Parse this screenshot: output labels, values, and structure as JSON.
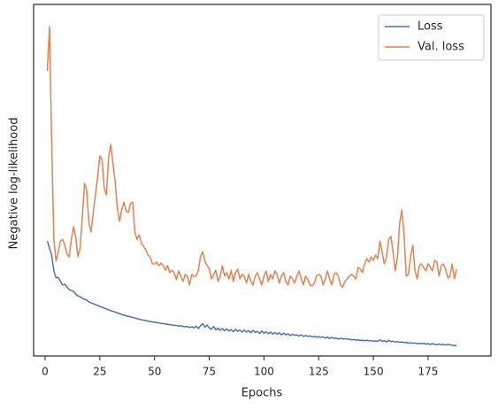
{
  "chart_data": {
    "type": "line",
    "xlabel": "Epochs",
    "ylabel": "Negative log-likelihood",
    "xlim": [
      -5.25,
      203.7
    ],
    "xticks": [
      0,
      25,
      50,
      75,
      100,
      125,
      150,
      175
    ],
    "ylim": [
      0,
      100
    ],
    "legend": "upper right",
    "x": [
      1,
      2,
      3,
      4,
      5,
      6,
      7,
      8,
      9,
      10,
      11,
      12,
      13,
      14,
      15,
      16,
      17,
      18,
      19,
      20,
      21,
      22,
      23,
      24,
      25,
      26,
      27,
      28,
      29,
      30,
      31,
      32,
      33,
      34,
      35,
      36,
      37,
      38,
      39,
      40,
      41,
      42,
      43,
      44,
      45,
      46,
      47,
      48,
      49,
      50,
      51,
      52,
      53,
      54,
      55,
      56,
      57,
      58,
      59,
      60,
      61,
      62,
      63,
      64,
      65,
      66,
      67,
      68,
      69,
      70,
      71,
      72,
      73,
      74,
      75,
      76,
      77,
      78,
      79,
      80,
      81,
      82,
      83,
      84,
      85,
      86,
      87,
      88,
      89,
      90,
      91,
      92,
      93,
      94,
      95,
      96,
      97,
      98,
      99,
      100,
      101,
      102,
      103,
      104,
      105,
      106,
      107,
      108,
      109,
      110,
      111,
      112,
      113,
      114,
      115,
      116,
      117,
      118,
      119,
      120,
      121,
      122,
      123,
      124,
      125,
      126,
      127,
      128,
      129,
      130,
      131,
      132,
      133,
      134,
      135,
      136,
      137,
      138,
      139,
      140,
      141,
      142,
      143,
      144,
      145,
      146,
      147,
      148,
      149,
      150,
      151,
      152,
      153,
      154,
      155,
      156,
      157,
      158,
      159,
      160,
      161,
      162,
      163,
      164,
      165,
      166,
      167,
      168,
      169,
      170,
      171,
      172,
      173,
      174,
      175,
      176,
      177,
      178,
      179,
      180,
      181,
      182,
      183,
      184,
      185,
      186,
      187,
      188
    ],
    "series": [
      {
        "name": "Loss",
        "color": "#4c72b0",
        "values": [
          32.7,
          30.7,
          28.7,
          24.2,
          22.2,
          22.4,
          21.2,
          20.2,
          20.4,
          19.6,
          18.9,
          18.6,
          18.4,
          17.6,
          17.1,
          16.9,
          16.4,
          16.1,
          15.9,
          15.4,
          15.1,
          14.9,
          14.6,
          14.4,
          14.1,
          13.9,
          13.6,
          13.4,
          13.1,
          12.9,
          12.7,
          12.5,
          12.2,
          12.1,
          11.8,
          11.6,
          11.5,
          11.3,
          11.1,
          11.0,
          10.8,
          10.6,
          10.5,
          10.3,
          10.2,
          10.1,
          9.9,
          9.8,
          9.7,
          9.6,
          9.5,
          9.4,
          9.3,
          9.2,
          9.1,
          9.0,
          8.9,
          8.8,
          8.7,
          8.7,
          8.5,
          8.6,
          8.4,
          8.3,
          8.4,
          8.1,
          8.3,
          8.0,
          8.5,
          7.8,
          8.6,
          9.2,
          8.2,
          8.8,
          8.0,
          7.6,
          8.4,
          7.4,
          7.9,
          7.3,
          7.8,
          7.2,
          7.7,
          7.1,
          7.5,
          6.9,
          7.6,
          7.0,
          7.4,
          6.8,
          7.4,
          6.8,
          7.2,
          6.6,
          7.3,
          6.7,
          7.0,
          6.4,
          7.1,
          6.5,
          6.9,
          6.3,
          6.8,
          6.2,
          6.7,
          6.2,
          6.6,
          6.0,
          6.5,
          6.0,
          6.3,
          5.8,
          6.2,
          5.9,
          6.0,
          5.7,
          6.0,
          5.6,
          5.8,
          5.6,
          5.7,
          5.4,
          5.6,
          5.3,
          5.5,
          5.3,
          5.4,
          5.1,
          5.4,
          5.0,
          5.3,
          5.0,
          5.1,
          4.8,
          5.1,
          4.8,
          4.9,
          4.8,
          4.8,
          4.6,
          4.7,
          4.5,
          4.6,
          4.4,
          4.5,
          4.3,
          4.5,
          4.3,
          4.4,
          4.2,
          4.3,
          4.2,
          4.6,
          4.2,
          4.4,
          4.0,
          4.5,
          4.1,
          4.2,
          4.0,
          4.1,
          3.9,
          4.0,
          3.8,
          3.9,
          3.6,
          3.8,
          3.6,
          3.7,
          3.5,
          3.6,
          3.5,
          3.6,
          3.4,
          3.5,
          3.3,
          3.5,
          3.3,
          3.2,
          3.4,
          3.2,
          3.3,
          3.1,
          3.3,
          3.2,
          3.0,
          3.1,
          2.8
        ]
      },
      {
        "name": "Val. loss",
        "color": "#dd8452",
        "values": [
          81.1,
          93.7,
          60.9,
          33.2,
          27,
          29.5,
          32.7,
          33.2,
          31.5,
          29,
          28.2,
          33.2,
          36.8,
          33.8,
          28.2,
          30.7,
          39.5,
          49.1,
          47.1,
          37.8,
          35.3,
          40.8,
          45.8,
          50.9,
          56.9,
          55.9,
          47.9,
          45.8,
          56.4,
          60.2,
          54.7,
          49.6,
          42,
          38.3,
          41.6,
          43.8,
          41.3,
          40.8,
          43.3,
          43.8,
          35.3,
          33.2,
          34.5,
          32,
          31.2,
          30.2,
          28.7,
          28.2,
          26.2,
          26.2,
          26.7,
          25.7,
          26.4,
          25.7,
          24.4,
          25.7,
          23.7,
          24.4,
          23.7,
          21.7,
          24.2,
          22.7,
          21.2,
          23.2,
          22.7,
          20.2,
          23.2,
          22.7,
          22.7,
          24.4,
          28.2,
          29.7,
          27,
          25.7,
          24.9,
          21.9,
          23.2,
          24.4,
          21.2,
          22.7,
          25.7,
          22.7,
          23.7,
          21.9,
          24.4,
          21.2,
          23.7,
          24.7,
          21.9,
          23.2,
          22.7,
          20.7,
          23.2,
          21.2,
          20.2,
          22.7,
          23.7,
          21.9,
          20.2,
          22.7,
          24.2,
          21.2,
          23.2,
          21.9,
          24.2,
          23.2,
          20.7,
          22.7,
          23.7,
          21.2,
          20.2,
          22.7,
          21.9,
          20.7,
          22.7,
          24.2,
          21.9,
          20.2,
          22.7,
          21.9,
          20.2,
          19.9,
          20.7,
          22.7,
          23.2,
          22.7,
          20.2,
          21.9,
          24.2,
          21.9,
          20.2,
          23.2,
          23.7,
          22.7,
          20.2,
          19.6,
          21.2,
          21.9,
          22.7,
          23.2,
          22.7,
          21.9,
          25.2,
          24.7,
          23.7,
          26.2,
          27.7,
          26.7,
          28.2,
          27.2,
          28.7,
          27.7,
          32.7,
          29.5,
          26.2,
          28.2,
          33.2,
          34,
          29.5,
          24.2,
          28.2,
          37.8,
          41.6,
          34.5,
          22.7,
          23.2,
          28.2,
          31.5,
          24.4,
          21.9,
          25.7,
          26.2,
          25.2,
          24.2,
          26.2,
          25.2,
          24.2,
          27.2,
          26.7,
          22.7,
          25.7,
          26.2,
          24.7,
          22.2,
          22.7,
          26.2,
          21.9,
          24.7
        ]
      }
    ]
  }
}
